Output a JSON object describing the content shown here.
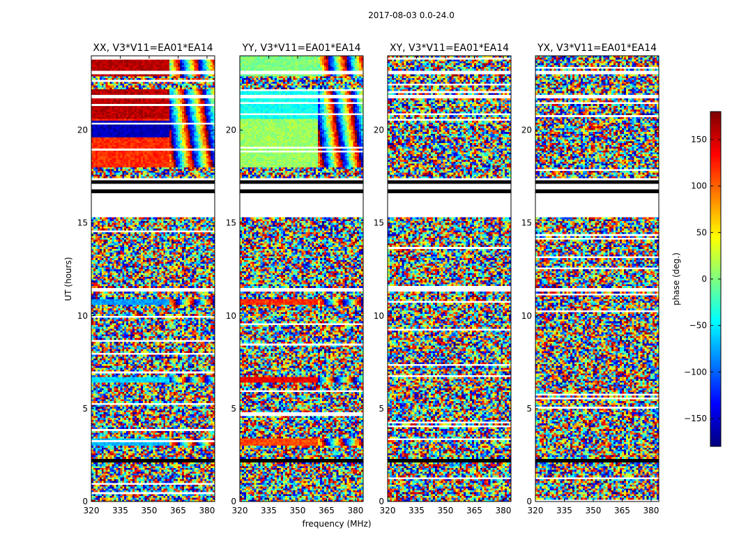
{
  "chart_data": {
    "type": "heatmap",
    "title": "2017-08-03 0.0-24.0",
    "xlabel": "frequency (MHz)",
    "ylabel": "UT (hours)",
    "xlim": [
      320,
      384
    ],
    "ylim": [
      0,
      24
    ],
    "xticks": [
      320,
      335,
      350,
      365,
      380
    ],
    "yticks": [
      0,
      5,
      10,
      15,
      20
    ],
    "panels": [
      {
        "name": "XX, V3*V11=EA01*EA14",
        "pol": "XX"
      },
      {
        "name": "YY, V3*V11=EA01*EA14",
        "pol": "YY"
      },
      {
        "name": "XY, V3*V11=EA01*EA14",
        "pol": "XY"
      },
      {
        "name": "YX, V3*V11=EA01*EA14",
        "pol": "YX"
      }
    ],
    "colorbar": {
      "label": "phase (deg.)",
      "range": [
        -180,
        180
      ],
      "ticks": [
        150,
        100,
        50,
        0,
        -50,
        -100,
        -150
      ],
      "tick_labels": [
        "150",
        "100",
        "50",
        "0",
        "−50",
        "−100",
        "−150"
      ],
      "colormap": "jet"
    },
    "flagged_ut_ranges": [
      [
        2.1,
        2.25
      ],
      [
        16.6,
        16.75
      ],
      [
        17.1,
        17.25
      ]
    ],
    "blank_ut_ranges": [
      [
        16.0,
        16.6
      ],
      [
        23.0,
        23.2
      ],
      [
        21.7,
        21.85
      ],
      [
        11.3,
        11.45
      ]
    ]
  }
}
